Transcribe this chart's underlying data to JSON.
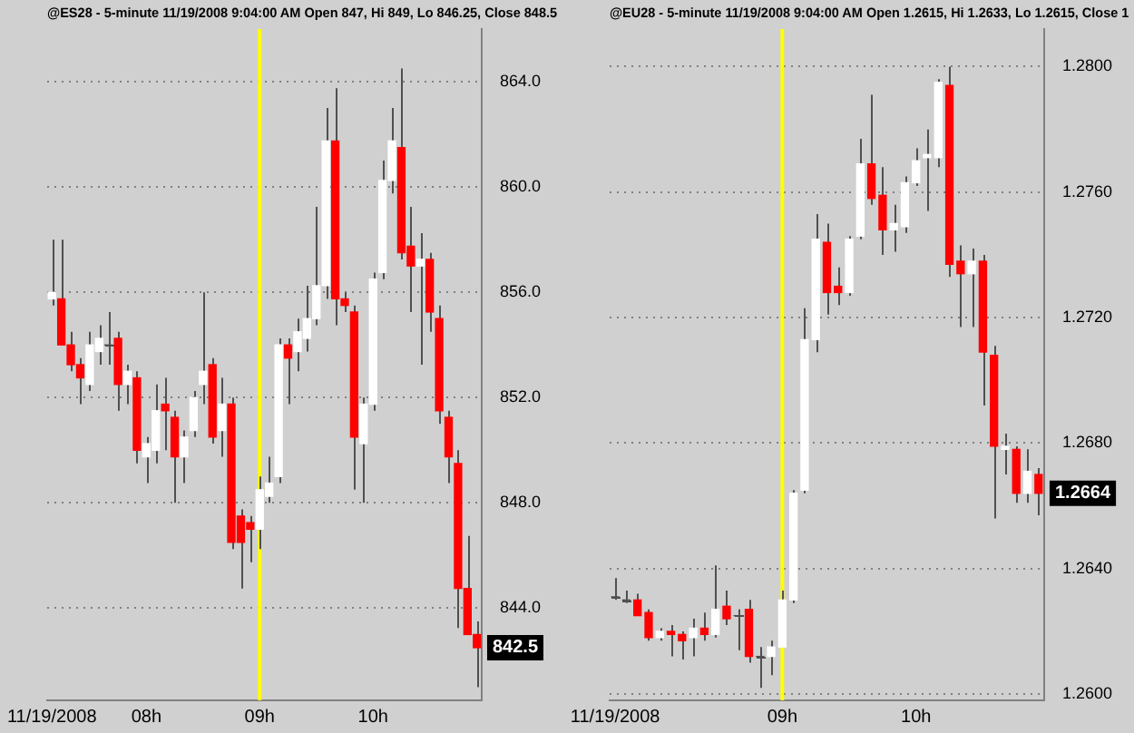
{
  "chart_data": [
    {
      "type": "candlestick",
      "title": "@ES28 - 5-minute 11/19/2008 9:04:00 AM Open 847, Hi 849, Lo 846.25, Close 848.5",
      "categories": [
        "11/19/2008",
        null,
        null,
        null,
        null,
        null,
        null,
        null,
        null,
        null,
        "08h",
        null,
        null,
        null,
        null,
        null,
        null,
        null,
        null,
        null,
        null,
        null,
        "09h",
        null,
        null,
        null,
        null,
        null,
        null,
        null,
        null,
        null,
        null,
        null,
        "10h",
        null,
        null,
        null,
        null,
        null,
        null,
        null,
        null,
        null,
        null,
        null
      ],
      "ohlc": [
        [
          855.75,
          858,
          855.5,
          856
        ],
        [
          855.75,
          858,
          854,
          854
        ],
        [
          854,
          854.5,
          853,
          853.25
        ],
        [
          853.25,
          853.5,
          851.75,
          852.75
        ],
        [
          852.5,
          854.5,
          852.25,
          854
        ],
        [
          853.75,
          854.75,
          853.25,
          854.25
        ],
        [
          854,
          855.25,
          853.25,
          854
        ],
        [
          854.25,
          854.5,
          851.5,
          852.5
        ],
        [
          852.5,
          853.25,
          851.75,
          853
        ],
        [
          852.75,
          853,
          849.5,
          850
        ],
        [
          849.75,
          850.5,
          848.75,
          850.25
        ],
        [
          850,
          852.5,
          849.5,
          851.5
        ],
        [
          851.75,
          852.75,
          850,
          851.5
        ],
        [
          851.25,
          851.5,
          848,
          849.75
        ],
        [
          849.75,
          850.75,
          848.75,
          850.5
        ],
        [
          850.75,
          852.25,
          850.5,
          852
        ],
        [
          852.5,
          856,
          851.75,
          853
        ],
        [
          853.25,
          853.5,
          850.25,
          850.5
        ],
        [
          850.75,
          852.75,
          849.75,
          851.75
        ],
        [
          851.75,
          852,
          846.25,
          846.5
        ],
        [
          847.5,
          847.75,
          844.75,
          846.5
        ],
        [
          847.25,
          847.5,
          845.75,
          847
        ],
        [
          847,
          849,
          846.25,
          848.5
        ],
        [
          848.25,
          849.75,
          848,
          848.75
        ],
        [
          849,
          854.25,
          848.75,
          854
        ],
        [
          854,
          854.25,
          851.75,
          853.5
        ],
        [
          853.75,
          855,
          853,
          854.5
        ],
        [
          854.25,
          856.25,
          853.75,
          855
        ],
        [
          855,
          859.25,
          854.75,
          856.25
        ],
        [
          856.25,
          863,
          855.75,
          861.75
        ],
        [
          861.75,
          863.75,
          854.75,
          855.75
        ],
        [
          855.75,
          856,
          855.25,
          855.5
        ],
        [
          855.25,
          855.5,
          848.5,
          850.5
        ],
        [
          850.25,
          852,
          848,
          851.75
        ],
        [
          851.75,
          856.75,
          851.5,
          856.5
        ],
        [
          856.75,
          861,
          856.5,
          860.25
        ],
        [
          860.25,
          863,
          859.75,
          861.75
        ],
        [
          861.5,
          864.5,
          857.25,
          857.5
        ],
        [
          857.75,
          859.25,
          855.25,
          857
        ],
        [
          857,
          858.25,
          853.25,
          857.25
        ],
        [
          857.25,
          857.5,
          854.5,
          855.25
        ],
        [
          855,
          855.5,
          851,
          851.5
        ],
        [
          851.25,
          851.5,
          848.75,
          849.75
        ],
        [
          849.5,
          850,
          843.25,
          844.75
        ],
        [
          844.75,
          846.75,
          843,
          843
        ],
        [
          843,
          843.5,
          841,
          842.5
        ]
      ],
      "colors": [
        "#ffffff",
        "#ff0000",
        "#ff0000",
        "#ff0000",
        "#ffffff",
        "#ffffff",
        "#505050",
        "#ff0000",
        "#ffffff",
        "#ff0000",
        "#ffffff",
        "#ffffff",
        "#ff0000",
        "#ff0000",
        "#ffffff",
        "#ffffff",
        "#ffffff",
        "#ff0000",
        "#ffffff",
        "#ff0000",
        "#ff0000",
        "#ff0000",
        "#ffffff",
        "#ffffff",
        "#ffffff",
        "#ff0000",
        "#ffffff",
        "#ffffff",
        "#ffffff",
        "#ffffff",
        "#ff0000",
        "#ff0000",
        "#ff0000",
        "#ffffff",
        "#ffffff",
        "#ffffff",
        "#ffffff",
        "#ff0000",
        "#ff0000",
        "#ffffff",
        "#ff0000",
        "#ff0000",
        "#ff0000",
        "#ff0000",
        "#ff0000",
        "#ff0000"
      ],
      "ylim": [
        840.5,
        866
      ],
      "yticks": [
        {
          "value": 844,
          "label": "844.0"
        },
        {
          "value": 848,
          "label": "848.0"
        },
        {
          "value": 852,
          "label": "852.0"
        },
        {
          "value": 856,
          "label": "856.0"
        },
        {
          "value": 860,
          "label": "860.0"
        },
        {
          "value": 864,
          "label": "864.0"
        }
      ],
      "grid": "y",
      "ref_lines": [
        {
          "axis": "x",
          "value": "09h",
          "color": "#ffff00"
        }
      ],
      "annotations": [
        "842.5"
      ]
    },
    {
      "type": "candlestick",
      "title": "@EU28 - 5-minute 11/19/2008 9:04:00 AM Open 1.2615, Hi 1.2633, Lo 1.2615, Close 1",
      "categories": [
        "11/19/2008",
        null,
        null,
        null,
        null,
        null,
        null,
        null,
        null,
        null,
        null,
        null,
        null,
        null,
        null,
        "09h",
        null,
        null,
        null,
        null,
        null,
        null,
        null,
        null,
        null,
        null,
        null,
        "10h",
        null,
        null,
        null,
        null,
        null,
        null,
        null,
        null,
        null,
        null,
        null
      ],
      "ohlc": [
        [
          1.2631,
          1.2637,
          1.263,
          1.2631
        ],
        [
          1.263,
          1.2633,
          1.2629,
          1.263
        ],
        [
          1.263,
          1.2632,
          1.2625,
          1.2625
        ],
        [
          1.2626,
          1.2627,
          1.2617,
          1.2618
        ],
        [
          1.2618,
          1.2621,
          1.2617,
          1.262
        ],
        [
          1.262,
          1.2622,
          1.2612,
          1.2619
        ],
        [
          1.2619,
          1.262,
          1.2611,
          1.2617
        ],
        [
          1.2618,
          1.2624,
          1.2612,
          1.2621
        ],
        [
          1.2621,
          1.2626,
          1.2617,
          1.2619
        ],
        [
          1.2619,
          1.2641,
          1.2618,
          1.2627
        ],
        [
          1.2628,
          1.2633,
          1.2622,
          1.2624
        ],
        [
          1.2625,
          1.2627,
          1.2614,
          1.2625
        ],
        [
          1.2627,
          1.263,
          1.261,
          1.2612
        ],
        [
          1.2612,
          1.2615,
          1.2602,
          1.2612
        ],
        [
          1.2612,
          1.2617,
          1.2606,
          1.2615
        ],
        [
          1.2615,
          1.2633,
          1.2615,
          1.263
        ],
        [
          1.263,
          1.2665,
          1.2629,
          1.2664
        ],
        [
          1.2665,
          1.2723,
          1.2664,
          1.2713
        ],
        [
          1.2713,
          1.2753,
          1.2709,
          1.2745
        ],
        [
          1.2744,
          1.275,
          1.2721,
          1.2728
        ],
        [
          1.273,
          1.2736,
          1.2724,
          1.2728
        ],
        [
          1.2728,
          1.2746,
          1.2727,
          1.2745
        ],
        [
          1.2746,
          1.2777,
          1.2745,
          1.2769
        ],
        [
          1.2769,
          1.2791,
          1.2756,
          1.2758
        ],
        [
          1.2759,
          1.2768,
          1.274,
          1.2748
        ],
        [
          1.2748,
          1.2756,
          1.2741,
          1.275
        ],
        [
          1.2749,
          1.2765,
          1.2747,
          1.2763
        ],
        [
          1.2763,
          1.2774,
          1.2762,
          1.277
        ],
        [
          1.2771,
          1.278,
          1.2754,
          1.2772
        ],
        [
          1.2771,
          1.2796,
          1.2768,
          1.2795
        ],
        [
          1.2794,
          1.28,
          1.2733,
          1.2737
        ],
        [
          1.2738,
          1.2743,
          1.2717,
          1.2734
        ],
        [
          1.2734,
          1.2742,
          1.2717,
          1.2738
        ],
        [
          1.2738,
          1.274,
          1.2692,
          1.2709
        ],
        [
          1.2708,
          1.2711,
          1.2656,
          1.2679
        ],
        [
          1.2678,
          1.2683,
          1.267,
          1.2679
        ],
        [
          1.2678,
          1.2679,
          1.2661,
          1.2664
        ],
        [
          1.2664,
          1.2678,
          1.2661,
          1.2671
        ],
        [
          1.267,
          1.2672,
          1.2657,
          1.2664
        ]
      ],
      "colors": [
        "#505050",
        "#505050",
        "#ff0000",
        "#ff0000",
        "#ffffff",
        "#ff0000",
        "#ff0000",
        "#ffffff",
        "#ff0000",
        "#ffffff",
        "#ff0000",
        "#505050",
        "#ff0000",
        "#505050",
        "#ffffff",
        "#ffffff",
        "#ffffff",
        "#ffffff",
        "#ffffff",
        "#ff0000",
        "#ff0000",
        "#ffffff",
        "#ffffff",
        "#ff0000",
        "#ff0000",
        "#ffffff",
        "#ffffff",
        "#ffffff",
        "#ffffff",
        "#ffffff",
        "#ff0000",
        "#ff0000",
        "#ffffff",
        "#ff0000",
        "#ff0000",
        "#ffffff",
        "#ff0000",
        "#ffffff",
        "#ff0000"
      ],
      "ylim": [
        1.2598,
        1.2812
      ],
      "yticks": [
        {
          "value": 1.26,
          "label": "1.2600"
        },
        {
          "value": 1.264,
          "label": "1.2640"
        },
        {
          "value": 1.268,
          "label": "1.2680"
        },
        {
          "value": 1.272,
          "label": "1.2720"
        },
        {
          "value": 1.276,
          "label": "1.2760"
        },
        {
          "value": 1.28,
          "label": "1.2800"
        }
      ],
      "grid": "y",
      "ref_lines": [
        {
          "axis": "x",
          "value": "09h",
          "color": "#ffff00"
        }
      ],
      "annotations": [
        "1.2664"
      ]
    }
  ]
}
